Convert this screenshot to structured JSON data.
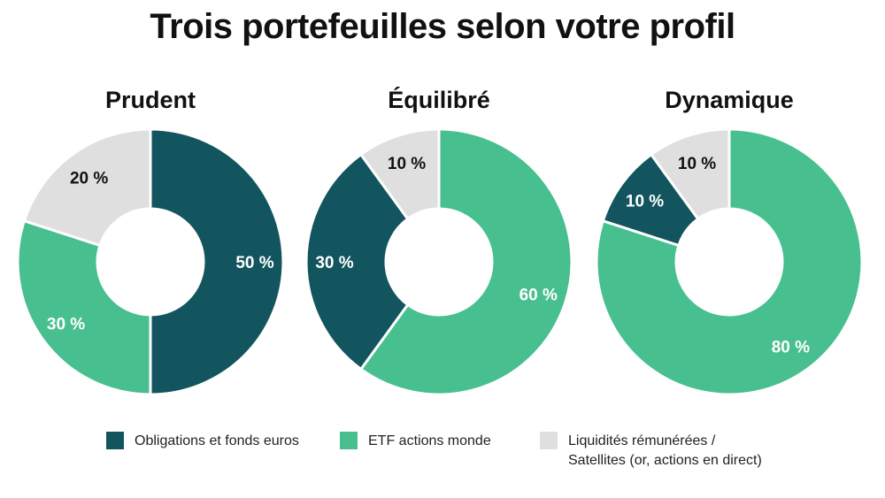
{
  "title": "Trois portefeuilles selon votre profil",
  "colors": {
    "obligations": "#13555f",
    "etf": "#47bf8f",
    "liquidites": "#dfdfdf"
  },
  "legend": [
    {
      "key": "obligations",
      "label_lines": [
        "Obligations et fonds euros"
      ]
    },
    {
      "key": "etf",
      "label_lines": [
        "ETF actions monde"
      ]
    },
    {
      "key": "liquidites",
      "label_lines": [
        "Liquidités rémunérées /",
        "Satellites (or, actions en direct)"
      ]
    }
  ],
  "chart_data": [
    {
      "type": "pie",
      "title": "Prudent",
      "slices": [
        {
          "key": "obligations",
          "value": 50,
          "label": "50 %"
        },
        {
          "key": "etf",
          "value": 30,
          "label": "30 %"
        },
        {
          "key": "liquidites",
          "value": 20,
          "label": "20 %"
        }
      ]
    },
    {
      "type": "pie",
      "title": "Équilibré",
      "slices": [
        {
          "key": "etf",
          "value": 60,
          "label": "60 %"
        },
        {
          "key": "obligations",
          "value": 30,
          "label": "30 %"
        },
        {
          "key": "liquidites",
          "value": 10,
          "label": "10 %"
        }
      ]
    },
    {
      "type": "pie",
      "title": "Dynamique",
      "slices": [
        {
          "key": "etf",
          "value": 80,
          "label": "80 %"
        },
        {
          "key": "obligations",
          "value": 10,
          "label": "10 %"
        },
        {
          "key": "liquidites",
          "value": 10,
          "label": "10 %"
        }
      ]
    }
  ]
}
